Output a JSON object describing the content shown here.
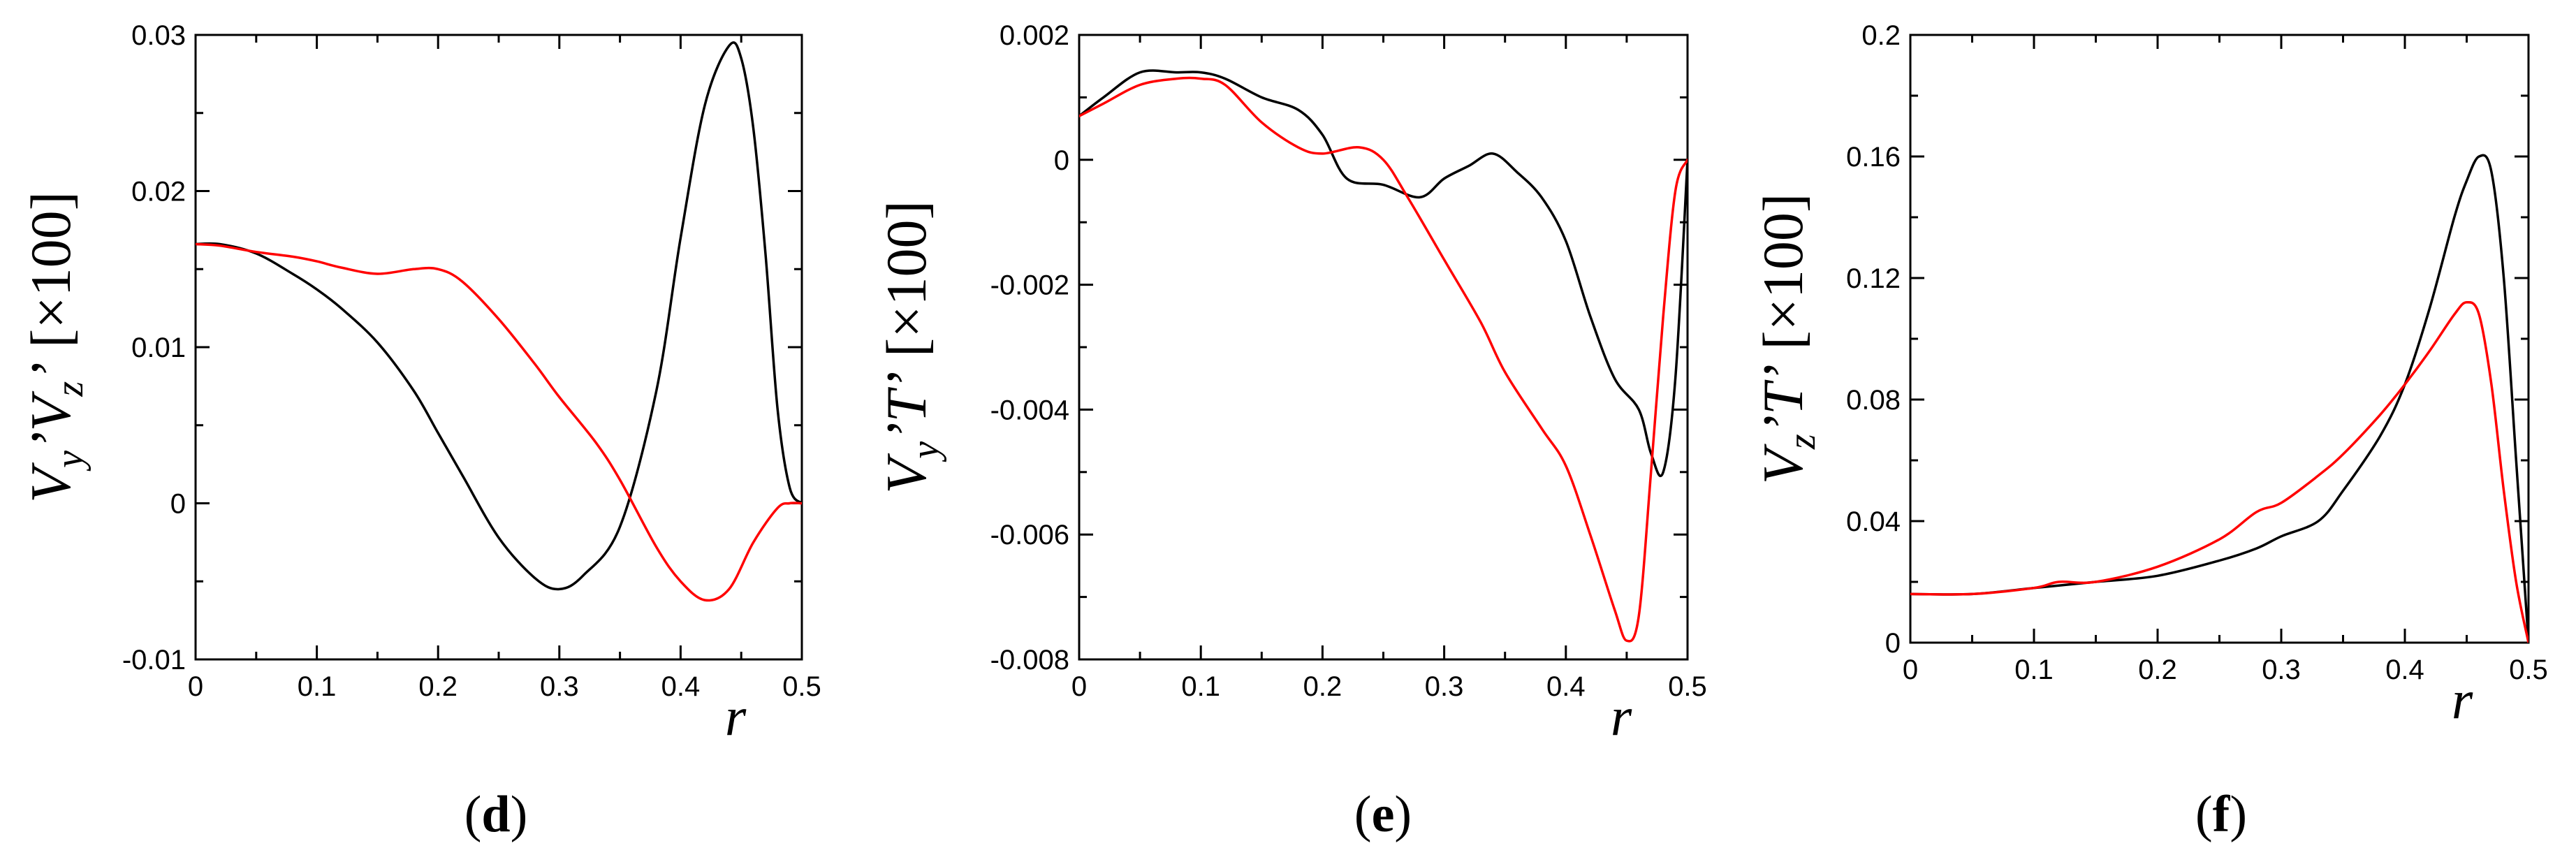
{
  "chart_data": [
    {
      "type": "line",
      "panel": "d",
      "caption_open": "(",
      "caption_letter": "d",
      "caption_close": ")",
      "ylabel": "Vy'Vz' [×100]",
      "ylabel_parts": {
        "main1": "V",
        "sub1": "y",
        "prime1": "’",
        "main2": "V",
        "sub2": "z",
        "prime2": "’",
        "scale": "[×100]"
      },
      "xlabel": "r",
      "xlim": [
        0,
        0.5
      ],
      "ylim": [
        -0.01,
        0.03
      ],
      "xticks": [
        0,
        0.1,
        0.2,
        0.3,
        0.4,
        0.5
      ],
      "xtick_labels": [
        "0",
        "0.1",
        "0.2",
        "0.3",
        "0.4",
        "0.5"
      ],
      "yticks": [
        -0.01,
        0,
        0.01,
        0.02,
        0.03
      ],
      "ytick_labels": [
        "-0.01",
        "0",
        "0.01",
        "0.02",
        "0.03"
      ],
      "series": [
        {
          "name": "black",
          "color": "#000000",
          "x": [
            0,
            0.02,
            0.05,
            0.08,
            0.1,
            0.12,
            0.15,
            0.18,
            0.2,
            0.22,
            0.25,
            0.28,
            0.3,
            0.32,
            0.35,
            0.38,
            0.4,
            0.42,
            0.44,
            0.45,
            0.46,
            0.47,
            0.48,
            0.49,
            0.5
          ],
          "y": [
            0.0166,
            0.0166,
            0.016,
            0.0147,
            0.0137,
            0.0125,
            0.0103,
            0.0072,
            0.0045,
            0.0018,
            -0.0022,
            -0.0048,
            -0.0055,
            -0.0046,
            -0.0015,
            0.0072,
            0.017,
            0.0255,
            0.0293,
            0.0285,
            0.024,
            0.016,
            0.006,
            0.001,
            0.0
          ]
        },
        {
          "name": "red",
          "color": "#ff0000",
          "x": [
            0,
            0.02,
            0.05,
            0.08,
            0.1,
            0.12,
            0.15,
            0.18,
            0.2,
            0.22,
            0.25,
            0.28,
            0.3,
            0.33,
            0.35,
            0.38,
            0.4,
            0.42,
            0.44,
            0.46,
            0.48,
            0.49,
            0.5
          ],
          "y": [
            0.0166,
            0.0165,
            0.0161,
            0.0158,
            0.0155,
            0.0151,
            0.0147,
            0.015,
            0.015,
            0.0142,
            0.0118,
            0.0089,
            0.0068,
            0.0039,
            0.0015,
            -0.0028,
            -0.005,
            -0.0062,
            -0.0055,
            -0.0025,
            -0.0003,
            0.0,
            0.0
          ]
        }
      ]
    },
    {
      "type": "line",
      "panel": "e",
      "caption_open": "(",
      "caption_letter": "e",
      "caption_close": ")",
      "ylabel": "Vy'T' [×100]",
      "ylabel_parts": {
        "main1": "V",
        "sub1": "y",
        "prime1": "’",
        "main2": "T",
        "sub2": "",
        "prime2": "’",
        "scale": "[×100]"
      },
      "xlabel": "r",
      "xlim": [
        0,
        0.5
      ],
      "ylim": [
        -0.008,
        0.002
      ],
      "xticks": [
        0,
        0.1,
        0.2,
        0.3,
        0.4,
        0.5
      ],
      "xtick_labels": [
        "0",
        "0.1",
        "0.2",
        "0.3",
        "0.4",
        "0.5"
      ],
      "yticks": [
        -0.008,
        -0.006,
        -0.004,
        -0.002,
        0,
        0.002
      ],
      "ytick_labels": [
        "-0.008",
        "-0.006",
        "-0.004",
        "-0.002",
        "0",
        "0.002"
      ],
      "series": [
        {
          "name": "black",
          "color": "#000000",
          "x": [
            0,
            0.02,
            0.05,
            0.08,
            0.1,
            0.12,
            0.15,
            0.18,
            0.2,
            0.22,
            0.25,
            0.28,
            0.3,
            0.32,
            0.34,
            0.36,
            0.38,
            0.4,
            0.42,
            0.44,
            0.46,
            0.47,
            0.48,
            0.49,
            0.5
          ],
          "y": [
            0.0007,
            0.001,
            0.0014,
            0.0014,
            0.0014,
            0.0013,
            0.001,
            0.0008,
            0.0004,
            -0.0003,
            -0.0004,
            -0.0006,
            -0.0003,
            -0.0001,
            0.0001,
            -0.0002,
            -0.0006,
            -0.0013,
            -0.0025,
            -0.0035,
            -0.004,
            -0.0047,
            -0.005,
            -0.0035,
            0.0
          ]
        },
        {
          "name": "red",
          "color": "#ff0000",
          "x": [
            0,
            0.02,
            0.05,
            0.08,
            0.1,
            0.12,
            0.15,
            0.18,
            0.2,
            0.23,
            0.25,
            0.27,
            0.3,
            0.33,
            0.35,
            0.38,
            0.4,
            0.42,
            0.44,
            0.45,
            0.46,
            0.47,
            0.48,
            0.49,
            0.5
          ],
          "y": [
            0.0007,
            0.0009,
            0.0012,
            0.0013,
            0.0013,
            0.0012,
            0.0006,
            0.0002,
            0.0001,
            0.0002,
            0.0,
            -0.0006,
            -0.0016,
            -0.0026,
            -0.0034,
            -0.0043,
            -0.0049,
            -0.006,
            -0.0072,
            -0.0077,
            -0.0073,
            -0.005,
            -0.0025,
            -0.0005,
            0.0
          ]
        }
      ]
    },
    {
      "type": "line",
      "panel": "f",
      "caption_open": "(",
      "caption_letter": "f",
      "caption_close": ")",
      "ylabel": "Vz'T' [×100]",
      "ylabel_parts": {
        "main1": "V",
        "sub1": "z",
        "prime1": "’",
        "main2": "T",
        "sub2": "",
        "prime2": "’",
        "scale": "[×100]"
      },
      "xlabel": "r",
      "xlim": [
        0,
        0.5
      ],
      "ylim": [
        0,
        0.2
      ],
      "xticks": [
        0,
        0.1,
        0.2,
        0.3,
        0.4,
        0.5
      ],
      "xtick_labels": [
        "0",
        "0.1",
        "0.2",
        "0.3",
        "0.4",
        "0.5"
      ],
      "yticks": [
        0,
        0.04,
        0.08,
        0.12,
        0.16,
        0.2
      ],
      "ytick_labels": [
        "0",
        "0.04",
        "0.08",
        "0.12",
        "0.16",
        "0.2"
      ],
      "series": [
        {
          "name": "black",
          "color": "#000000",
          "x": [
            0,
            0.05,
            0.1,
            0.15,
            0.2,
            0.25,
            0.28,
            0.3,
            0.33,
            0.35,
            0.38,
            0.4,
            0.42,
            0.44,
            0.45,
            0.46,
            0.47,
            0.48,
            0.49,
            0.5
          ],
          "y": [
            0.016,
            0.016,
            0.018,
            0.02,
            0.022,
            0.027,
            0.031,
            0.035,
            0.04,
            0.05,
            0.068,
            0.085,
            0.11,
            0.14,
            0.152,
            0.16,
            0.155,
            0.12,
            0.06,
            0.0
          ]
        },
        {
          "name": "red",
          "color": "#ff0000",
          "x": [
            0,
            0.05,
            0.1,
            0.12,
            0.15,
            0.2,
            0.25,
            0.28,
            0.3,
            0.33,
            0.35,
            0.38,
            0.4,
            0.42,
            0.44,
            0.45,
            0.46,
            0.47,
            0.48,
            0.49,
            0.5
          ],
          "y": [
            0.016,
            0.016,
            0.018,
            0.02,
            0.02,
            0.025,
            0.034,
            0.043,
            0.046,
            0.055,
            0.062,
            0.075,
            0.085,
            0.096,
            0.108,
            0.112,
            0.108,
            0.085,
            0.05,
            0.02,
            0.0
          ]
        }
      ]
    }
  ]
}
